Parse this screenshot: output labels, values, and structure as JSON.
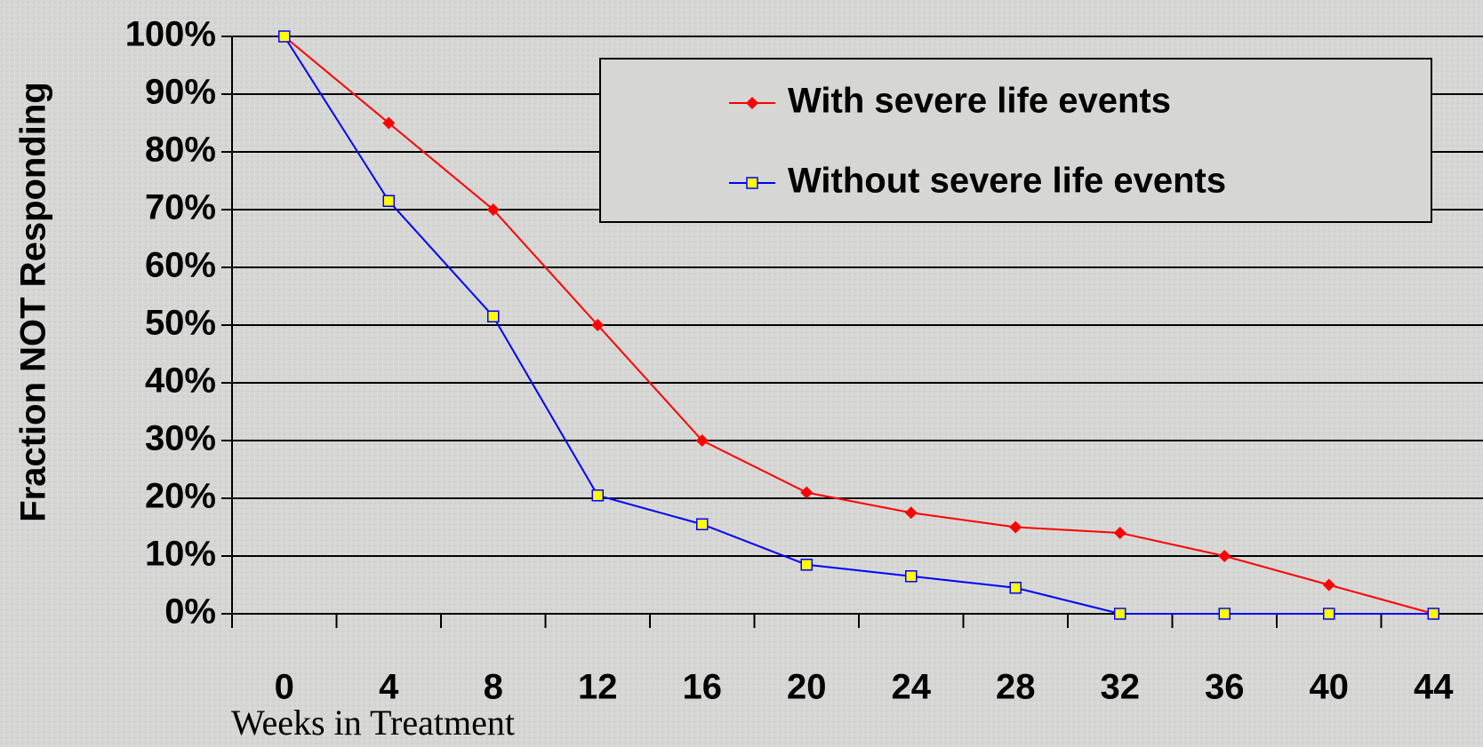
{
  "chart_data": {
    "type": "line",
    "y_label": "Fraction NOT Responding",
    "x_label": "Weeks in Treatment",
    "categories": [
      "0",
      "4",
      "8",
      "12",
      "16",
      "20",
      "24",
      "28",
      "32",
      "36",
      "40",
      "44"
    ],
    "series": [
      {
        "name": "With severe life events",
        "color": "#ff0000",
        "marker": "diamond",
        "values": [
          100,
          85,
          70,
          50,
          30,
          21,
          17.5,
          15,
          14,
          10,
          5,
          0
        ]
      },
      {
        "name": "Without severe life events",
        "color": "#0000ff",
        "marker": "square",
        "marker_fill": "#ffff00",
        "values": [
          100,
          71.5,
          51.5,
          20.5,
          15.5,
          8.5,
          6.5,
          4.5,
          0,
          0,
          0,
          0
        ]
      }
    ],
    "ylim": [
      0,
      100
    ],
    "yticks": [
      {
        "value": 0,
        "label": "0%"
      },
      {
        "value": 10,
        "label": "10%"
      },
      {
        "value": 20,
        "label": "20%"
      },
      {
        "value": 30,
        "label": "30%"
      },
      {
        "value": 40,
        "label": "40%"
      },
      {
        "value": 50,
        "label": "50%"
      },
      {
        "value": 60,
        "label": "60%"
      },
      {
        "value": 70,
        "label": "70%"
      },
      {
        "value": 80,
        "label": "80%"
      },
      {
        "value": 90,
        "label": "90%"
      },
      {
        "value": 100,
        "label": "100%"
      }
    ],
    "grid": true,
    "legend": "top-right"
  }
}
